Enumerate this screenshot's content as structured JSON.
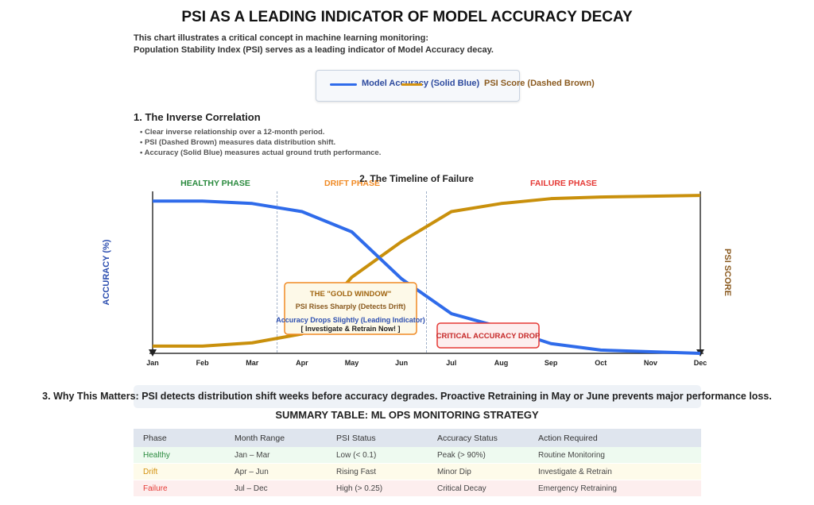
{
  "title": "PSI AS A LEADING INDICATOR OF MODEL ACCURACY DECAY",
  "subtitle": [
    "This chart illustrates a critical concept in machine learning monitoring:",
    "Population Stability Index (PSI) serves as a leading indicator of Model Accuracy decay."
  ],
  "legend": {
    "accuracy": "Model Accuracy (Solid Blue)",
    "psi": "PSI Score (Dashed Brown)"
  },
  "section1": {
    "heading": "1. The Inverse Correlation",
    "bullets": [
      "• Clear inverse relationship over a 12-month period.",
      "• PSI (Dashed Brown) measures data distribution shift.",
      "• Accuracy (Solid Blue) measures actual ground truth performance."
    ]
  },
  "chart_data": {
    "type": "line",
    "title": "2. The Timeline of Failure",
    "xlabel": "",
    "ylabel": "ACCURACY (%)",
    "ylabel_right": "PSI SCORE",
    "categories": [
      "Jan",
      "Feb",
      "Mar",
      "Apr",
      "May",
      "Jun",
      "Jul",
      "Aug",
      "Sep",
      "Oct",
      "Nov",
      "Dec"
    ],
    "ylim": [
      0,
      1
    ],
    "grid": false,
    "series": [
      {
        "name": "Model Accuracy (Solid Blue)",
        "color": "#2f6bea",
        "values": [
          0.94,
          0.94,
          0.925,
          0.875,
          0.75,
          0.46,
          0.245,
          0.16,
          0.06,
          0.02,
          0.01,
          0.0
        ]
      },
      {
        "name": "PSI Score (Dashed Brown)",
        "color": "#c9900c",
        "values": [
          0.045,
          0.045,
          0.065,
          0.12,
          0.47,
          0.69,
          0.875,
          0.925,
          0.955,
          0.965,
          0.97,
          0.975
        ]
      }
    ],
    "phases": [
      {
        "label": "HEALTHY PHASE",
        "color": "#2a8a3e"
      },
      {
        "label": "DRIFT PHASE",
        "color": "#f08a24"
      },
      {
        "label": "FAILURE PHASE",
        "color": "#e53935"
      }
    ],
    "annotations": {
      "gold_window": {
        "title": "THE \"GOLD WINDOW\"",
        "line1": "PSI Rises Sharply (Detects Drift)",
        "line2": "Accuracy Drops Slightly (Leading Indicator)",
        "line3": "[ Investigate & Retrain Now! ]"
      },
      "critical": "CRITICAL ACCURACY DROP"
    }
  },
  "section3": "3. Why This Matters: PSI detects distribution shift weeks before accuracy degrades. Proactive Retraining in May or June prevents major performance loss.",
  "table": {
    "title": "SUMMARY TABLE: ML OPS MONITORING STRATEGY",
    "headers": [
      "Phase",
      "Month Range",
      "PSI Status",
      "Accuracy Status",
      "Action Required"
    ],
    "rows": [
      {
        "cells": [
          "Healthy",
          "Jan – Mar",
          "Low (< 0.1)",
          "Peak (> 90%)",
          "Routine Monitoring"
        ],
        "bg": "#eefaf0",
        "color": "#2a8a3e"
      },
      {
        "cells": [
          "Drift",
          "Apr – Jun",
          "Rising Fast",
          "Minor Dip",
          "Investigate & Retrain"
        ],
        "bg": "#fefbea",
        "color": "#d4920f"
      },
      {
        "cells": [
          "Failure",
          "Jul – Dec",
          "High (> 0.25)",
          "Critical Decay",
          "Emergency Retraining"
        ],
        "bg": "#fdeeee",
        "color": "#e53935"
      }
    ]
  }
}
